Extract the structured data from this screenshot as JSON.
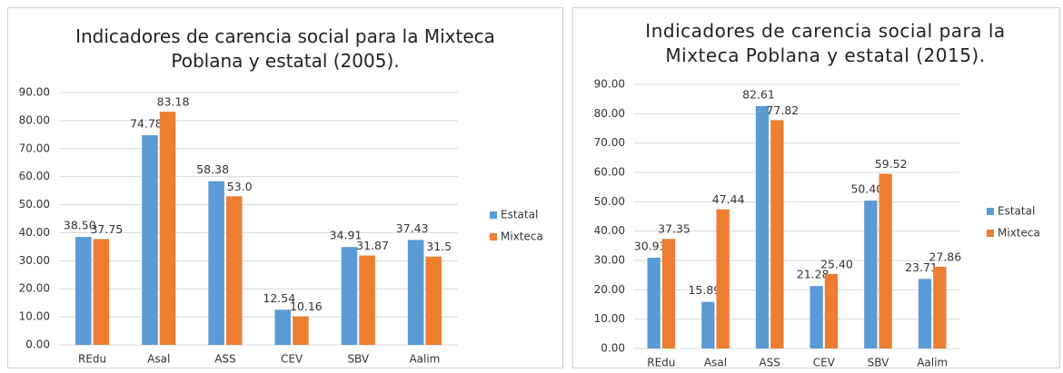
{
  "chart_data": [
    {
      "type": "bar",
      "title": "Indicadores de carencia social para la Mixteca Poblana y estatal (2005).",
      "categories": [
        "REdu",
        "Asal",
        "ASS",
        "CEV",
        "SBV",
        "Aalim"
      ],
      "series": [
        {
          "name": "Estatal",
          "color": "#5b9bd5",
          "values": [
            38.5,
            74.78,
            58.38,
            12.54,
            34.91,
            37.43
          ],
          "value_labels": [
            "38.50",
            "74.78",
            "58.38",
            "12.54",
            "34.91",
            "37.43"
          ]
        },
        {
          "name": "Mixteca",
          "color": "#ed7d31",
          "values": [
            37.75,
            83.18,
            53.0,
            10.16,
            31.87,
            31.5
          ],
          "value_labels": [
            "37.75",
            "83.18",
            "53.0",
            "10.16",
            "31.87",
            "31.5"
          ]
        }
      ],
      "ylim": [
        0,
        90
      ],
      "yticks": [
        {
          "value": 0,
          "label": "0.00"
        },
        {
          "value": 10,
          "label": "10.00"
        },
        {
          "value": 20,
          "label": "20.00"
        },
        {
          "value": 30,
          "label": "30.00"
        },
        {
          "value": 40,
          "label": "40.00"
        },
        {
          "value": 50,
          "label": "50.00"
        },
        {
          "value": 60,
          "label": "60.00"
        },
        {
          "value": 70,
          "label": "70.00"
        },
        {
          "value": 80,
          "label": "80.00"
        },
        {
          "value": 90,
          "label": "90.00"
        }
      ],
      "grid": true,
      "legend": "right"
    },
    {
      "type": "bar",
      "title": "Indicadores de carencia social para la Mixteca Poblana y estatal (2015).",
      "categories": [
        "REdu",
        "Asal",
        "ASS",
        "CEV",
        "SBV",
        "Aalim"
      ],
      "series": [
        {
          "name": "Estatal",
          "color": "#5b9bd5",
          "values": [
            30.93,
            15.89,
            82.61,
            21.28,
            50.4,
            23.71
          ],
          "value_labels": [
            "30.93",
            "15.89",
            "82.61",
            "21.28",
            "50.40",
            "23.71"
          ]
        },
        {
          "name": "Mixteca",
          "color": "#ed7d31",
          "values": [
            37.35,
            47.44,
            77.82,
            25.4,
            59.52,
            27.86
          ],
          "value_labels": [
            "37.35",
            "47.44",
            "77.82",
            "25.40",
            "59.52",
            "27.86"
          ]
        }
      ],
      "ylim": [
        0,
        90
      ],
      "yticks": [
        {
          "value": 0,
          "label": "0.00"
        },
        {
          "value": 10,
          "label": "10.00"
        },
        {
          "value": 20,
          "label": "20.00"
        },
        {
          "value": 30,
          "label": "30.00"
        },
        {
          "value": 40,
          "label": "40.00"
        },
        {
          "value": 50,
          "label": "50.00"
        },
        {
          "value": 60,
          "label": "60.00"
        },
        {
          "value": 70,
          "label": "70.00"
        },
        {
          "value": 80,
          "label": "80.00"
        },
        {
          "value": 90,
          "label": "90.00"
        }
      ],
      "grid": true,
      "legend": "right"
    }
  ]
}
